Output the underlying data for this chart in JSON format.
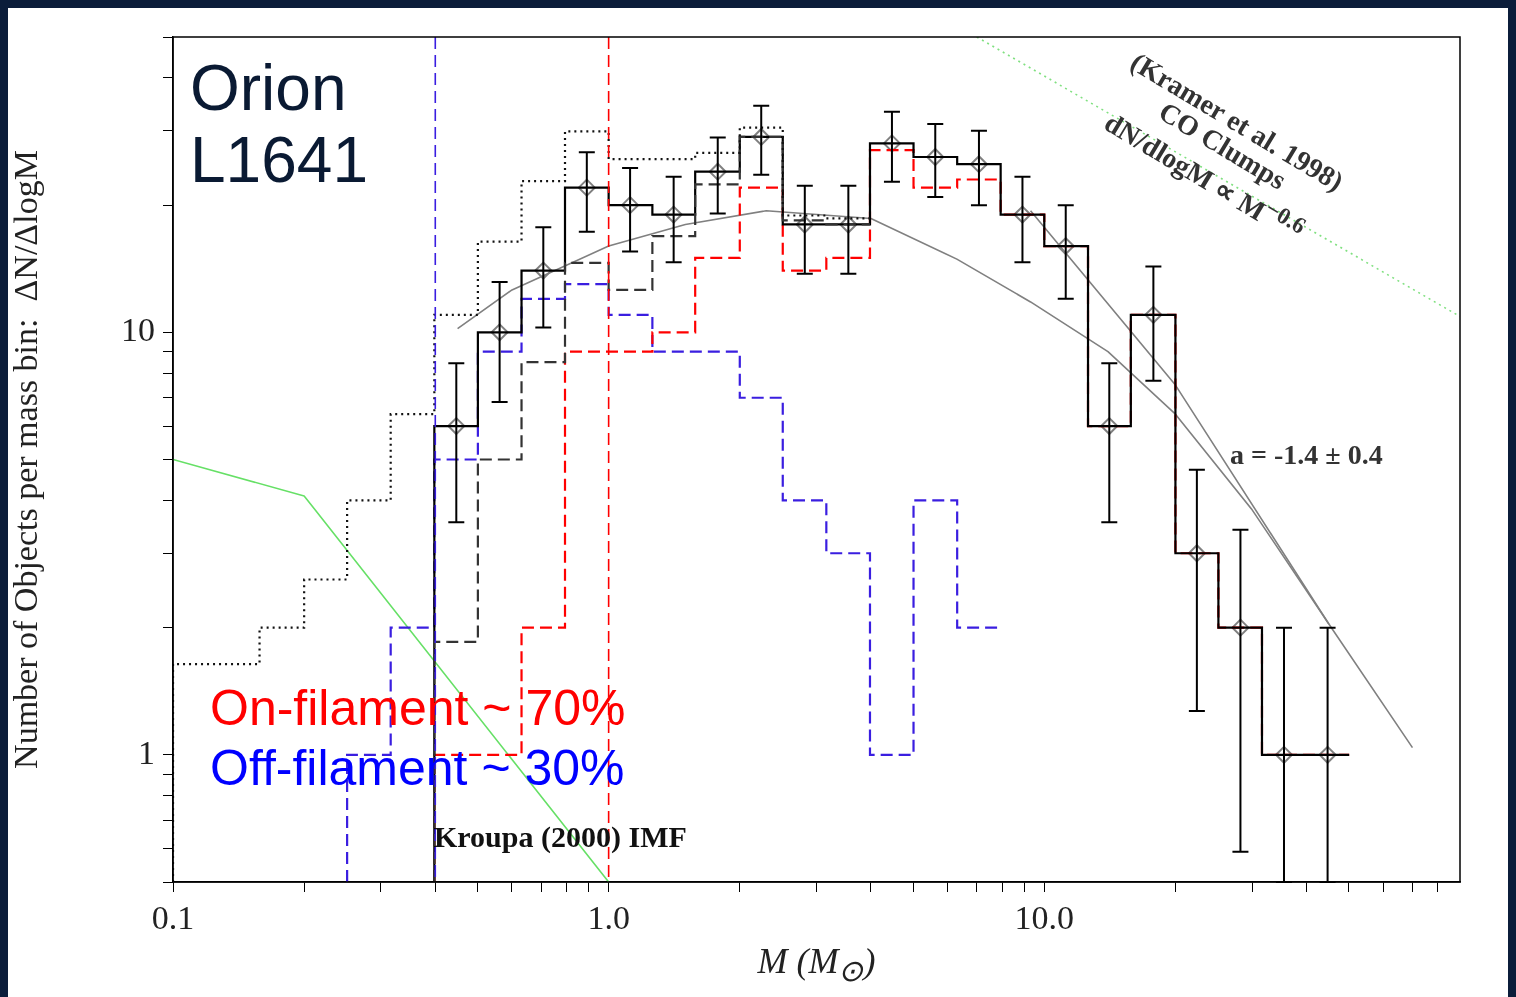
{
  "chart_data": {
    "type": "histogram",
    "xlabel": "M (M$_{⊙}$)",
    "ylabel": "Number of Objects per mass bin:  ΔN/ΔlogM",
    "log": "xy",
    "grid": false,
    "legend": false,
    "xlim": [
      0.1,
      90
    ],
    "ylim": [
      0.5,
      50
    ],
    "xticks": [
      0.1,
      {
        "value": 0.2,
        "label": null
      },
      {
        "value": 0.3,
        "label": null
      },
      {
        "value": 0.4,
        "label": null
      },
      {
        "value": 0.5,
        "label": null
      },
      {
        "value": 0.6,
        "label": null
      },
      {
        "value": 0.7,
        "label": null
      },
      {
        "value": 0.8,
        "label": null
      },
      {
        "value": 0.9,
        "label": null
      },
      {
        "value": 1,
        "label": "1.0"
      },
      {
        "value": 2,
        "label": null
      },
      {
        "value": 3,
        "label": null
      },
      {
        "value": 4,
        "label": null
      },
      {
        "value": 5,
        "label": null
      },
      {
        "value": 6,
        "label": null
      },
      {
        "value": 7,
        "label": null
      },
      {
        "value": 8,
        "label": null
      },
      {
        "value": 9,
        "label": null
      },
      {
        "value": 10,
        "label": "10.0"
      },
      {
        "value": 20,
        "label": null
      },
      {
        "value": 30,
        "label": null
      },
      {
        "value": 40,
        "label": null
      },
      {
        "value": 50,
        "label": null
      },
      {
        "value": 60,
        "label": null
      },
      {
        "value": 70,
        "label": null
      },
      {
        "value": 80,
        "label": null
      }
    ],
    "yticks": [
      {
        "value": 0.5,
        "label": null
      },
      {
        "value": 0.6,
        "label": null
      },
      {
        "value": 0.7,
        "label": null
      },
      {
        "value": 0.8,
        "label": null
      },
      {
        "value": 0.9,
        "label": null
      },
      1,
      {
        "value": 2,
        "label": null
      },
      {
        "value": 3,
        "label": null
      },
      {
        "value": 4,
        "label": null
      },
      {
        "value": 5,
        "label": null
      },
      {
        "value": 6,
        "label": null
      },
      {
        "value": 7,
        "label": null
      },
      {
        "value": 8,
        "label": null
      },
      {
        "value": 9,
        "label": null
      },
      10,
      {
        "value": 20,
        "label": null
      },
      {
        "value": 30,
        "label": null
      },
      {
        "value": 40,
        "label": null
      },
      {
        "value": 50,
        "label": null
      }
    ],
    "series": [
      {
        "color": "#111111",
        "line_style": "dotted",
        "bins": [
          0.1,
          0.126,
          0.158,
          0.2,
          0.251,
          0.316,
          0.398,
          0.501,
          0.631,
          0.794,
          1,
          1.26,
          1.58,
          2,
          2.51,
          3.16,
          3.98
        ],
        "values": [
          1.64,
          1.64,
          2,
          2.6,
          4,
          6.4,
          11,
          16.4,
          22.8,
          29.9,
          25.7,
          25.7,
          26.6,
          30.5,
          18.9,
          18.6
        ]
      },
      {
        "color": "#333333",
        "line_style": "dashed",
        "bins": [
          0.398,
          0.501,
          0.631,
          0.794,
          1,
          1.26,
          1.58,
          2,
          2.51,
          3.16,
          3.98
        ],
        "values": [
          1.85,
          5,
          8.5,
          14.6,
          12.6,
          16.9,
          22.4,
          29,
          18.4,
          18
        ]
      },
      {
        "color": "#000000",
        "line_style": "solid",
        "bins": [
          0.398,
          0.501,
          0.631,
          0.794,
          1,
          1.26,
          1.58,
          2,
          2.51,
          3.16,
          3.98,
          5.01,
          6.31,
          7.94,
          10,
          12.6,
          15.8,
          20,
          25.1,
          31.6,
          39.8,
          50.1
        ],
        "values": [
          6,
          10,
          14,
          22,
          20,
          19,
          24,
          29,
          18,
          18,
          28,
          26,
          25,
          19,
          16,
          6,
          11,
          3,
          2,
          1,
          1
        ]
      },
      {
        "color": "#ff0000",
        "line_style": "dashed",
        "bins": [
          0.398,
          0.501,
          0.631,
          0.794,
          1,
          1.26,
          1.58,
          2,
          2.51,
          3.16,
          3.98,
          5.01,
          6.31,
          7.94,
          10,
          12.6,
          15.8,
          20,
          25.1,
          31.6,
          39.8,
          50.1
        ],
        "values": [
          1,
          1,
          2,
          9,
          9,
          10,
          15,
          22,
          14,
          15,
          27,
          22,
          23,
          19,
          16,
          6,
          11,
          3,
          2,
          1,
          1
        ]
      },
      {
        "color": "#3a1ee0",
        "line_style": "dashed",
        "bins": [
          0.251,
          0.316,
          0.398,
          0.501,
          0.631,
          0.794,
          1,
          1.26,
          1.58,
          2,
          2.51,
          3.16,
          3.98,
          5.01,
          6.31,
          7.94
        ],
        "values": [
          1,
          2,
          5,
          9,
          12,
          13,
          11,
          9,
          9,
          7,
          4,
          3,
          1,
          4,
          2
        ]
      },
      {
        "type": "scatter",
        "color": "#808080",
        "marker": "diamond",
        "x": [
          0.447,
          0.562,
          0.708,
          0.891,
          1.12,
          1.41,
          1.78,
          2.24,
          2.82,
          3.55,
          4.47,
          5.62,
          7.08,
          8.91,
          11.2,
          14.1,
          17.8,
          22.4,
          28.2,
          35.5,
          44.7
        ],
        "values": [
          6,
          10,
          14,
          22,
          20,
          19,
          24,
          29,
          18,
          18,
          28,
          26,
          25,
          19,
          16,
          6,
          11,
          3,
          2,
          1,
          1
        ],
        "errors": [
          2.45,
          3.16,
          3.74,
          4.69,
          4.47,
          4.36,
          4.9,
          5.39,
          4.24,
          4.24,
          5.29,
          5.1,
          5,
          4.36,
          4,
          2.45,
          3.32,
          1.73,
          1.41,
          [
            0.5,
            2
          ],
          [
            0.5,
            2
          ]
        ]
      },
      {
        "type": "line",
        "color": "#808080",
        "line_style": "solid",
        "x": [
          0.45,
          0.6,
          1,
          1.5,
          2.3,
          4,
          6.3,
          9.3,
          14,
          20,
          30,
          45,
          70
        ],
        "values": [
          10.2,
          12.6,
          16,
          18,
          19.4,
          18.6,
          14.9,
          11.8,
          9,
          6.4,
          3.8,
          2.04,
          1.04
        ]
      },
      {
        "type": "line",
        "color": "#808080",
        "line_style": "solid",
        "x": [
          9.3,
          20,
          45
        ],
        "values": [
          19.4,
          7.5,
          2.04
        ]
      },
      {
        "type": "line",
        "color": "#66e066",
        "line_style": "solid",
        "x": [
          0.1,
          0.2,
          1
        ],
        "values": [
          5,
          4.1,
          0.5
        ]
      },
      {
        "type": "line",
        "color": "#80e080",
        "line_style": "dotted",
        "x": [
          7,
          90
        ],
        "values": [
          50,
          10.9
        ]
      }
    ],
    "ref_lines": [
      {
        "axis": "x",
        "value": 0.4,
        "color": "#3a1ee0",
        "line_style": "dashed"
      },
      {
        "axis": "x",
        "value": 1,
        "color": "#ff0000",
        "line_style": "dashed"
      }
    ],
    "annotations": [
      "Orion\nL1641",
      "On-filament ~ 70%",
      "Off-filament ~ 30%",
      "Kroupa (2000) IMF",
      "(Kramer et al. 1998)\nCO Clumps\ndN/dlogM ∝ M$^{−0.6}$",
      "a = -1.4 ± 0.4"
    ]
  }
}
